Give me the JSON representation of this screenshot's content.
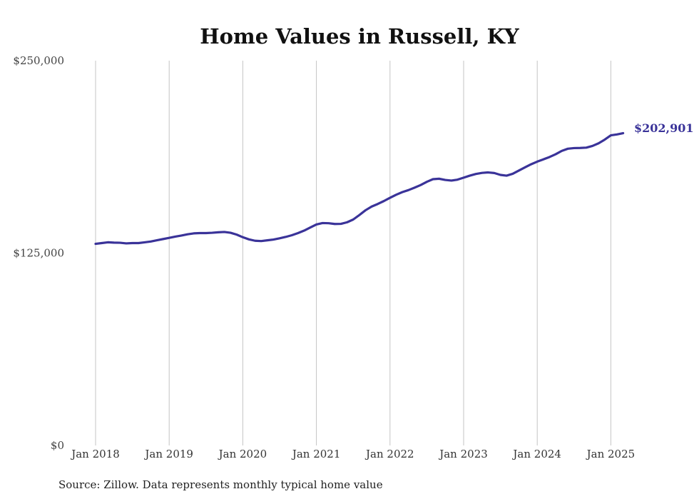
{
  "chart_data": {
    "type": "line",
    "title": "Home Values in Russell, KY",
    "xlabel": "",
    "ylabel": "",
    "ylim": [
      0,
      250000
    ],
    "y_ticks": [
      {
        "value": 0,
        "label": "$0"
      },
      {
        "value": 125000,
        "label": "$125,000"
      },
      {
        "value": 250000,
        "label": "$250,000"
      }
    ],
    "x_ticks": [
      {
        "value": 2018,
        "label": "Jan 2018"
      },
      {
        "value": 2019,
        "label": "Jan 2019"
      },
      {
        "value": 2020,
        "label": "Jan 2020"
      },
      {
        "value": 2021,
        "label": "Jan 2021"
      },
      {
        "value": 2022,
        "label": "Jan 2022"
      },
      {
        "value": 2023,
        "label": "Jan 2023"
      },
      {
        "value": 2024,
        "label": "Jan 2024"
      },
      {
        "value": 2025,
        "label": "Jan 2025"
      }
    ],
    "grid": "vertical",
    "line_color": "#3a3399",
    "series": [
      {
        "x": [
          "2018-01",
          "2018-02",
          "2018-03",
          "2018-04",
          "2018-05",
          "2018-06",
          "2018-07",
          "2018-08",
          "2018-09",
          "2018-10",
          "2018-11",
          "2018-12",
          "2019-01",
          "2019-02",
          "2019-03",
          "2019-04",
          "2019-05",
          "2019-06",
          "2019-07",
          "2019-08",
          "2019-09",
          "2019-10",
          "2019-11",
          "2019-12",
          "2020-01",
          "2020-02",
          "2020-03",
          "2020-04",
          "2020-05",
          "2020-06",
          "2020-07",
          "2020-08",
          "2020-09",
          "2020-10",
          "2020-11",
          "2020-12",
          "2021-01",
          "2021-02",
          "2021-03",
          "2021-04",
          "2021-05",
          "2021-06",
          "2021-07",
          "2021-08",
          "2021-09",
          "2021-10",
          "2021-11",
          "2021-12",
          "2022-01",
          "2022-02",
          "2022-03",
          "2022-04",
          "2022-05",
          "2022-06",
          "2022-07",
          "2022-08",
          "2022-09",
          "2022-10",
          "2022-11",
          "2022-12",
          "2023-01",
          "2023-02",
          "2023-03",
          "2023-04",
          "2023-05",
          "2023-06",
          "2023-07",
          "2023-08",
          "2023-09",
          "2023-10",
          "2023-11",
          "2023-12",
          "2024-01",
          "2024-02",
          "2024-03",
          "2024-04",
          "2024-05",
          "2024-06",
          "2024-07",
          "2024-08",
          "2024-09",
          "2024-10",
          "2024-11",
          "2024-12",
          "2025-01",
          "2025-02",
          "2025-03"
        ],
        "values": [
          131000,
          131500,
          132000,
          131800,
          131700,
          131300,
          131500,
          131500,
          132000,
          132500,
          133300,
          134100,
          134900,
          135700,
          136400,
          137200,
          137800,
          138000,
          138000,
          138200,
          138500,
          138700,
          138200,
          137000,
          135300,
          133900,
          133000,
          132800,
          133300,
          133800,
          134600,
          135500,
          136600,
          138000,
          139600,
          141600,
          143600,
          144500,
          144400,
          143900,
          144000,
          145000,
          146800,
          149700,
          152800,
          155200,
          156900,
          158800,
          160900,
          162900,
          164600,
          165900,
          167500,
          169200,
          171300,
          173000,
          173300,
          172500,
          172100,
          172700,
          174000,
          175300,
          176400,
          177100,
          177400,
          177000,
          175800,
          175300,
          176500,
          178600,
          180700,
          182700,
          184400,
          185900,
          187400,
          189200,
          191400,
          192800,
          193200,
          193300,
          193500,
          194600,
          196300,
          198700,
          201500,
          202100,
          202901
        ]
      }
    ],
    "end_label": "$202,901",
    "source": "Source: Zillow. Data represents monthly typical home value"
  }
}
